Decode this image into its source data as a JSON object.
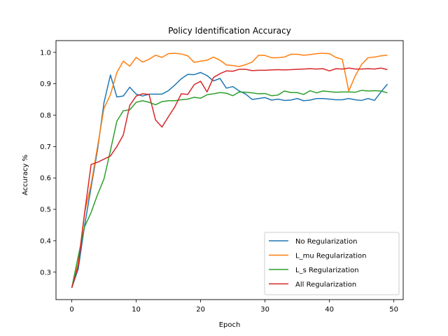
{
  "chart_data": {
    "type": "line",
    "title": "Policy Identification Accuracy",
    "xlabel": "Epoch",
    "ylabel": "Accuracy %",
    "xlim": [
      -2.45,
      51.45
    ],
    "ylim": [
      0.2125,
      1.0375
    ],
    "xticks": [
      0,
      10,
      20,
      30,
      40,
      50
    ],
    "yticks": [
      0.3,
      0.4,
      0.5,
      0.6,
      0.7,
      0.8,
      0.9,
      1.0
    ],
    "ytick_labels": [
      "0.3",
      "0.4",
      "0.5",
      "0.6",
      "0.7",
      "0.8",
      "0.9",
      "1.0"
    ],
    "grid": false,
    "legend_position": "bottom-right",
    "x": [
      0,
      1,
      2,
      3,
      4,
      5,
      6,
      7,
      8,
      9,
      10,
      11,
      12,
      13,
      14,
      15,
      16,
      17,
      18,
      19,
      20,
      21,
      22,
      23,
      24,
      25,
      26,
      27,
      28,
      29,
      30,
      31,
      32,
      33,
      34,
      35,
      36,
      37,
      38,
      39,
      40,
      41,
      42,
      43,
      44,
      45,
      46,
      47,
      48,
      49
    ],
    "series": [
      {
        "name": "No Regularization",
        "color": "#1f77b4",
        "values": [
          0.25,
          0.31,
          0.45,
          0.57,
          0.69,
          0.84,
          0.928,
          0.858,
          0.861,
          0.889,
          0.867,
          0.861,
          0.867,
          0.867,
          0.867,
          0.878,
          0.896,
          0.916,
          0.93,
          0.929,
          0.936,
          0.926,
          0.909,
          0.917,
          0.886,
          0.891,
          0.877,
          0.867,
          0.85,
          0.853,
          0.856,
          0.848,
          0.851,
          0.847,
          0.848,
          0.853,
          0.846,
          0.848,
          0.853,
          0.853,
          0.851,
          0.849,
          0.849,
          0.853,
          0.849,
          0.847,
          0.853,
          0.847,
          0.874,
          0.899
        ]
      },
      {
        "name": "L_mu Regularization",
        "color": "#ff7f0e",
        "values": [
          0.25,
          0.33,
          0.49,
          0.58,
          0.7,
          0.822,
          0.865,
          0.936,
          0.972,
          0.956,
          0.984,
          0.969,
          0.978,
          0.991,
          0.984,
          0.996,
          0.997,
          0.995,
          0.989,
          0.968,
          0.972,
          0.975,
          0.985,
          0.975,
          0.96,
          0.958,
          0.955,
          0.961,
          0.969,
          0.991,
          0.99,
          0.983,
          0.983,
          0.985,
          0.994,
          0.994,
          0.991,
          0.993,
          0.996,
          0.997,
          0.996,
          0.984,
          0.978,
          0.877,
          0.925,
          0.962,
          0.983,
          0.985,
          0.989,
          0.991
        ]
      },
      {
        "name": "L_s Regularization",
        "color": "#2ca02c",
        "values": [
          0.25,
          0.35,
          0.445,
          0.49,
          0.547,
          0.597,
          0.687,
          0.781,
          0.814,
          0.817,
          0.841,
          0.846,
          0.841,
          0.833,
          0.843,
          0.846,
          0.846,
          0.849,
          0.851,
          0.857,
          0.854,
          0.865,
          0.868,
          0.872,
          0.87,
          0.862,
          0.874,
          0.873,
          0.871,
          0.868,
          0.869,
          0.862,
          0.864,
          0.877,
          0.872,
          0.872,
          0.866,
          0.878,
          0.871,
          0.877,
          0.875,
          0.873,
          0.874,
          0.874,
          0.873,
          0.879,
          0.877,
          0.878,
          0.877,
          0.871
        ]
      },
      {
        "name": "All Regularization",
        "color": "#d62728",
        "values": [
          0.25,
          0.32,
          0.49,
          0.643,
          0.65,
          0.66,
          0.67,
          0.7,
          0.737,
          0.831,
          0.861,
          0.868,
          0.866,
          0.785,
          0.762,
          0.795,
          0.827,
          0.868,
          0.866,
          0.897,
          0.908,
          0.874,
          0.92,
          0.932,
          0.941,
          0.94,
          0.946,
          0.946,
          0.942,
          0.943,
          0.943,
          0.944,
          0.945,
          0.944,
          0.945,
          0.946,
          0.947,
          0.948,
          0.947,
          0.948,
          0.941,
          0.948,
          0.947,
          0.95,
          0.947,
          0.947,
          0.948,
          0.947,
          0.95,
          0.945
        ]
      }
    ]
  }
}
